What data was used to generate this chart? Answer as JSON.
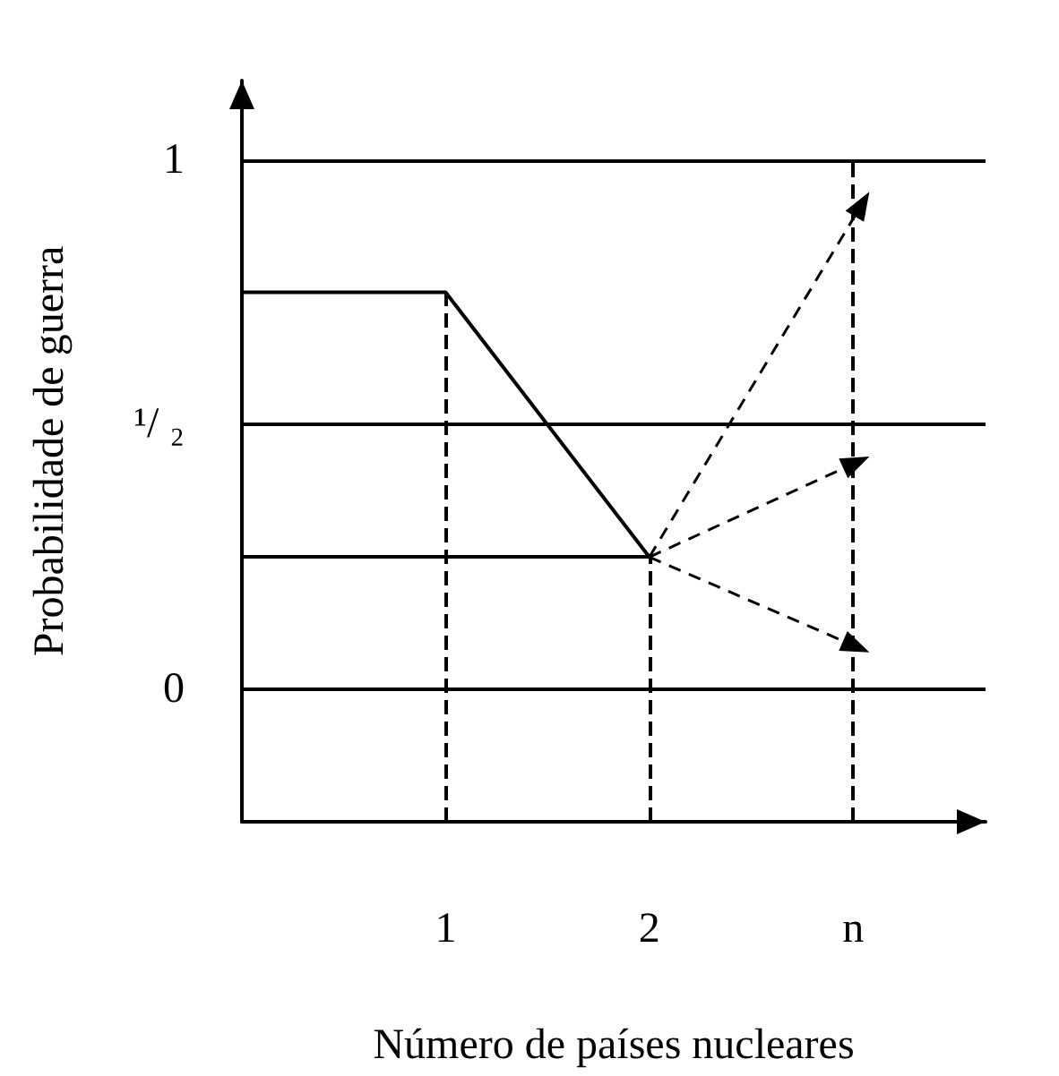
{
  "chart_data": {
    "type": "line",
    "xlabel": "Número de países nucleares",
    "ylabel": "Probabilidade de guerra",
    "xlim": [
      0,
      3.65
    ],
    "ylim": [
      -0.25,
      1.15
    ],
    "xticks": [
      {
        "value": 1,
        "label": "1"
      },
      {
        "value": 2,
        "label": "2"
      },
      {
        "value": 3,
        "label": "n"
      }
    ],
    "yticks": [
      0,
      {
        "value": 0.5,
        "label": "¹/ ₂"
      },
      1
    ],
    "series": [
      {
        "color": "#000000",
        "x": [
          0,
          1,
          2
        ],
        "values": [
          0.75,
          0.75,
          0.25
        ],
        "line_style": "solid"
      }
    ],
    "ref_lines": [
      {
        "axis": "y",
        "value": 0.25,
        "color": "#000000",
        "line_style": "solid"
      },
      {
        "axis": "x",
        "value": 1,
        "color": "#000000",
        "line_style": "dashed"
      },
      {
        "axis": "x",
        "value": 2,
        "color": "#000000",
        "line_style": "dashed"
      },
      {
        "axis": "x",
        "value": 3,
        "color": "#000000",
        "line_style": "dashed"
      }
    ],
    "grid": "y",
    "marker": "none"
  }
}
